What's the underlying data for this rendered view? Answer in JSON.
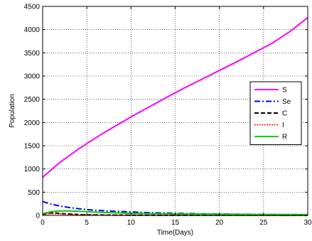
{
  "chart_data": {
    "type": "line",
    "xlabel": "Time(Days)",
    "ylabel": "Population",
    "xlim": [
      0,
      30
    ],
    "ylim": [
      0,
      4500
    ],
    "xticks": [
      0,
      5,
      10,
      15,
      20,
      25,
      30
    ],
    "yticks": [
      0,
      500,
      1000,
      1500,
      2000,
      2500,
      3000,
      3500,
      4000,
      4500
    ],
    "grid": true,
    "legend_position": "right",
    "series": [
      {
        "name": "S",
        "color": "#ff00ff",
        "dash": "solid",
        "x": [
          0,
          2,
          4,
          6,
          8,
          10,
          12,
          14,
          16,
          18,
          20,
          22,
          24,
          26,
          28,
          30
        ],
        "y": [
          820,
          1150,
          1420,
          1670,
          1900,
          2120,
          2330,
          2540,
          2740,
          2930,
          3120,
          3310,
          3510,
          3710,
          3960,
          4260
        ]
      },
      {
        "name": "Se",
        "color": "#0000ff",
        "dash": "dashdot",
        "x": [
          0,
          1,
          2,
          3,
          4,
          5,
          6,
          8,
          10,
          12,
          15,
          18,
          20,
          25,
          30
        ],
        "y": [
          300,
          240,
          200,
          170,
          145,
          125,
          110,
          90,
          75,
          60,
          45,
          35,
          30,
          20,
          15
        ]
      },
      {
        "name": "C",
        "color": "#000000",
        "dash": "dashed",
        "x": [
          0,
          0.5,
          1,
          1.5,
          2,
          3,
          4,
          5,
          6,
          8,
          10,
          15,
          20,
          25,
          30
        ],
        "y": [
          20,
          45,
          55,
          50,
          42,
          30,
          20,
          14,
          10,
          6,
          4,
          2,
          1,
          1,
          0
        ]
      },
      {
        "name": "I",
        "color": "#ff0000",
        "dash": "dotted",
        "x": [
          0,
          0.5,
          1,
          1.5,
          2,
          3,
          4,
          5,
          6,
          8,
          10,
          15,
          20,
          25,
          30
        ],
        "y": [
          10,
          25,
          35,
          35,
          30,
          22,
          15,
          10,
          7,
          4,
          3,
          1,
          1,
          0,
          0
        ]
      },
      {
        "name": "R",
        "color": "#00cc00",
        "dash": "solid",
        "x": [
          0,
          1,
          2,
          3,
          4,
          5,
          6,
          8,
          10,
          15,
          20,
          25,
          30
        ],
        "y": [
          40,
          80,
          95,
          95,
          90,
          80,
          70,
          55,
          45,
          30,
          25,
          20,
          20
        ]
      }
    ]
  }
}
